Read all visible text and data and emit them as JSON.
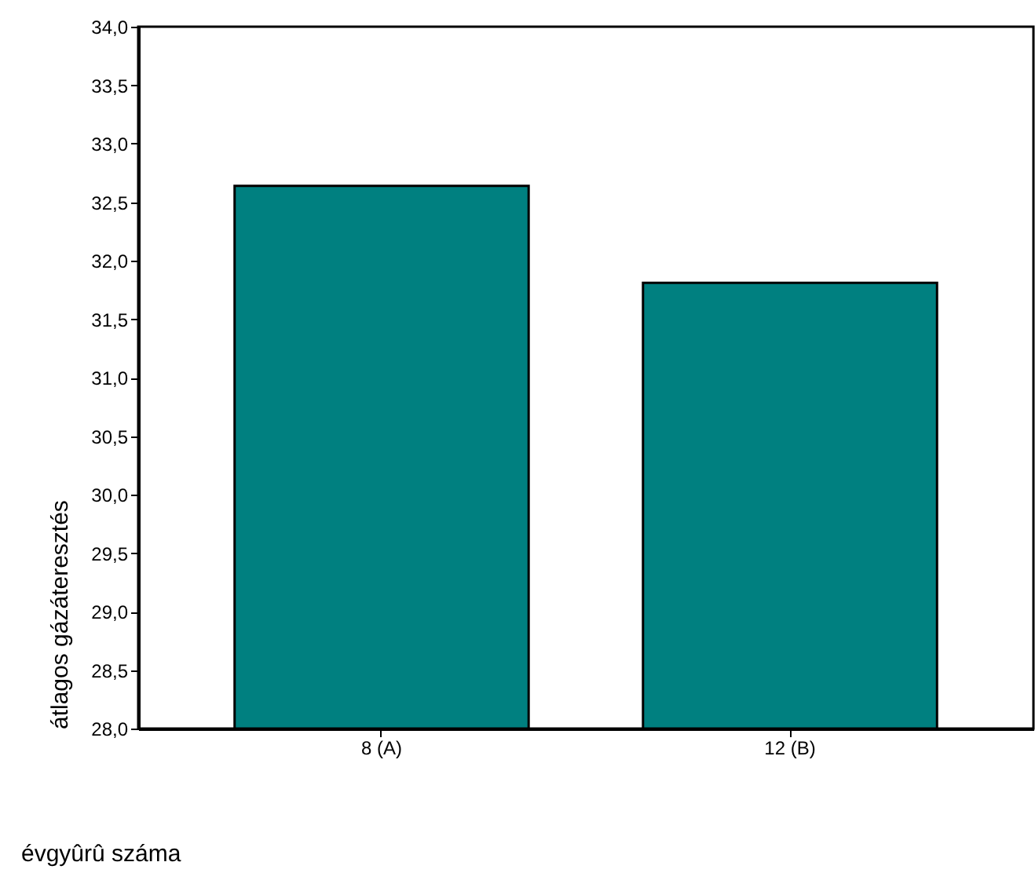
{
  "chart_data": {
    "type": "bar",
    "xlabel": "évgyûrû száma",
    "ylabel": "átlagos gázáteresztés",
    "categories": [
      "8 (A)",
      "12 (B)"
    ],
    "values": [
      32.64,
      31.81
    ],
    "color": "#008080",
    "ylim": [
      28.0,
      34.0
    ],
    "yticks": [
      {
        "value": 28.0,
        "label": "28,0"
      },
      {
        "value": 28.5,
        "label": "28,5"
      },
      {
        "value": 29.0,
        "label": "29,0"
      },
      {
        "value": 29.5,
        "label": "29,5"
      },
      {
        "value": 30.0,
        "label": "30,0"
      },
      {
        "value": 30.5,
        "label": "30,5"
      },
      {
        "value": 31.0,
        "label": "31,0"
      },
      {
        "value": 31.5,
        "label": "31,5"
      },
      {
        "value": 32.0,
        "label": "32,0"
      },
      {
        "value": 32.5,
        "label": "32,5"
      },
      {
        "value": 33.0,
        "label": "33,0"
      },
      {
        "value": 33.5,
        "label": "33,5"
      },
      {
        "value": 34.0,
        "label": "34,0"
      }
    ],
    "grid": false
  }
}
